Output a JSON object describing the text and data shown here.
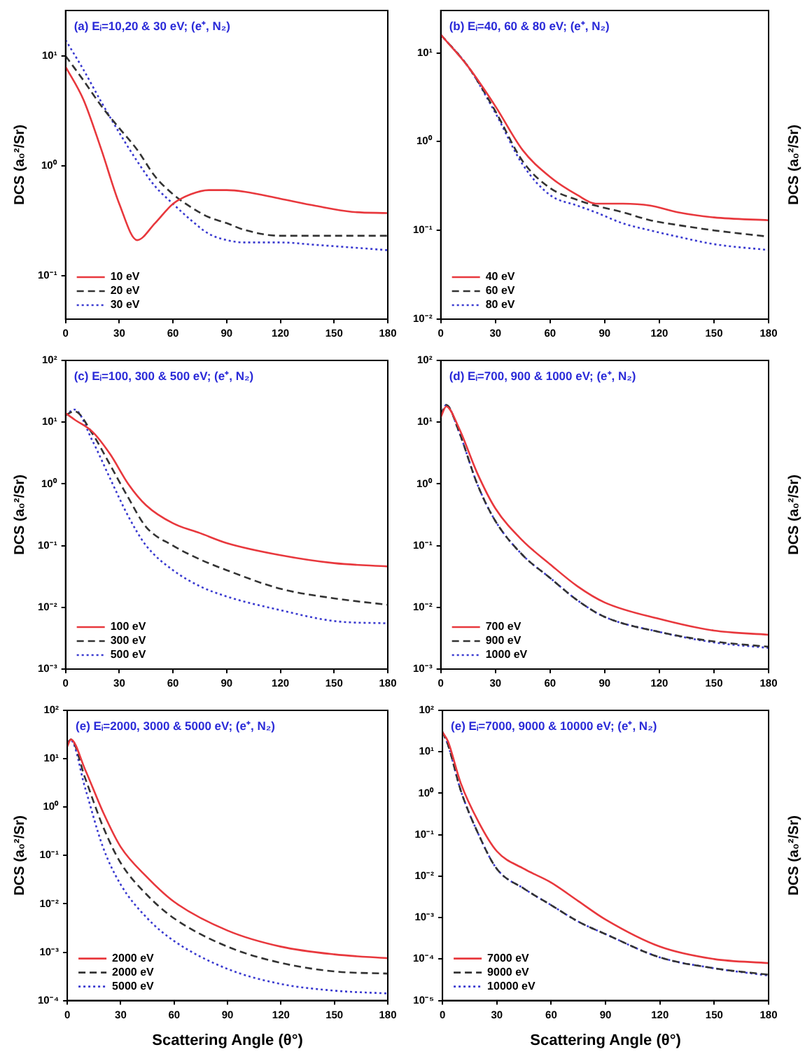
{
  "chart_data": [
    {
      "type": "line",
      "title": "(a) Eᵢ=10,20 & 30 eV; (e⁺, N₂)",
      "ylabel": "DCS (a₀²/Sr)",
      "log": "y",
      "grid": false,
      "legend": "bottom left",
      "marker": "none",
      "xlim": [
        0,
        180
      ],
      "xticks": [
        0,
        30,
        60,
        90,
        120,
        150,
        180
      ],
      "ylim": [
        0.04,
        26
      ],
      "yticks": [
        {
          "value": 0.1,
          "label": "10⁻¹"
        },
        {
          "value": 1,
          "label": "10⁰"
        },
        {
          "value": 10,
          "label": "10¹"
        }
      ],
      "x": [
        0,
        10,
        20,
        30,
        40,
        50,
        60,
        70,
        80,
        90,
        100,
        120,
        140,
        160,
        180
      ],
      "series": [
        {
          "name": "10 eV",
          "color": "#e8383d",
          "line_style": "solid",
          "values": [
            8,
            4,
            1.4,
            0.45,
            0.21,
            0.3,
            0.45,
            0.55,
            0.6,
            0.6,
            0.58,
            0.5,
            0.43,
            0.38,
            0.37
          ]
        },
        {
          "name": "20 eV",
          "color": "#333333",
          "line_style": "dashed",
          "values": [
            10,
            6,
            3.5,
            2.2,
            1.4,
            0.8,
            0.55,
            0.42,
            0.34,
            0.3,
            0.26,
            0.23,
            0.23,
            0.23,
            0.23
          ]
        },
        {
          "name": "30 eV",
          "color": "#3a3ad0",
          "line_style": "dotted",
          "values": [
            14,
            7.5,
            3.8,
            2,
            1.1,
            0.65,
            0.45,
            0.32,
            0.24,
            0.21,
            0.2,
            0.2,
            0.19,
            0.18,
            0.17
          ]
        }
      ]
    },
    {
      "type": "line",
      "title": "(b) Eᵢ=40, 60 & 80 eV; (e⁺, N₂)",
      "ylabel": "DCS (a₀²/Sr)",
      "log": "y",
      "grid": false,
      "legend": "bottom left",
      "marker": "none",
      "xlim": [
        0,
        180
      ],
      "xticks": [
        0,
        30,
        60,
        90,
        120,
        150,
        180
      ],
      "ylim": [
        0.01,
        30
      ],
      "yticks": [
        {
          "value": 0.01,
          "label": "10⁻²"
        },
        {
          "value": 0.1,
          "label": "10⁻¹"
        },
        {
          "value": 1,
          "label": "10⁰"
        },
        {
          "value": 10,
          "label": "10¹"
        }
      ],
      "x": [
        0,
        15,
        30,
        45,
        60,
        75,
        85,
        100,
        115,
        130,
        150,
        180
      ],
      "series": [
        {
          "name": "40 eV",
          "color": "#e8383d",
          "line_style": "solid",
          "values": [
            16,
            7,
            2.5,
            0.8,
            0.4,
            0.25,
            0.2,
            0.2,
            0.19,
            0.16,
            0.14,
            0.13
          ]
        },
        {
          "name": "60 eV",
          "color": "#333333",
          "line_style": "dashed",
          "values": [
            16,
            7,
            2.2,
            0.6,
            0.3,
            0.22,
            0.19,
            0.16,
            0.13,
            0.115,
            0.1,
            0.085
          ]
        },
        {
          "name": "80 eV",
          "color": "#3a3ad0",
          "line_style": "dotted",
          "values": [
            16,
            7,
            2.1,
            0.55,
            0.25,
            0.19,
            0.16,
            0.12,
            0.1,
            0.085,
            0.07,
            0.06
          ]
        }
      ]
    },
    {
      "type": "line",
      "title": "(c) Eᵢ=100, 300 & 500 eV; (e⁺, N₂)",
      "ylabel": "DCS (a₀²/Sr)",
      "log": "y",
      "grid": false,
      "legend": "bottom left",
      "marker": "none",
      "xlim": [
        0,
        180
      ],
      "xticks": [
        0,
        30,
        60,
        90,
        120,
        150,
        180
      ],
      "ylim": [
        0.001,
        100
      ],
      "yticks": [
        {
          "value": 0.001,
          "label": "10⁻³"
        },
        {
          "value": 0.01,
          "label": "10⁻²"
        },
        {
          "value": 0.1,
          "label": "10⁻¹"
        },
        {
          "value": 1,
          "label": "10⁰"
        },
        {
          "value": 10,
          "label": "10¹"
        },
        {
          "value": 100,
          "label": "10²"
        }
      ],
      "x": [
        0,
        5,
        15,
        25,
        35,
        45,
        60,
        75,
        90,
        120,
        150,
        180
      ],
      "series": [
        {
          "name": "100 eV",
          "color": "#e8383d",
          "line_style": "solid",
          "values": [
            14,
            11,
            7,
            3,
            1,
            0.45,
            0.23,
            0.16,
            0.11,
            0.07,
            0.052,
            0.046
          ]
        },
        {
          "name": "300 eV",
          "color": "#333333",
          "line_style": "dashed",
          "values": [
            13,
            15,
            6.5,
            2,
            0.6,
            0.2,
            0.1,
            0.06,
            0.04,
            0.02,
            0.014,
            0.011
          ]
        },
        {
          "name": "500 eV",
          "color": "#3a3ad0",
          "line_style": "dotted",
          "values": [
            13,
            16,
            5,
            1.2,
            0.3,
            0.1,
            0.04,
            0.022,
            0.015,
            0.009,
            0.006,
            0.0055
          ]
        }
      ]
    },
    {
      "type": "line",
      "title": "(d) Eᵢ=700, 900 & 1000 eV; (e⁺, N₂)",
      "ylabel": "DCS (a₀²/Sr)",
      "log": "y",
      "grid": false,
      "legend": "bottom left",
      "marker": "none",
      "xlim": [
        0,
        180
      ],
      "xticks": [
        0,
        30,
        60,
        90,
        120,
        150,
        180
      ],
      "ylim": [
        0.001,
        100
      ],
      "yticks": [
        {
          "value": 0.001,
          "label": "10⁻³"
        },
        {
          "value": 0.01,
          "label": "10⁻²"
        },
        {
          "value": 0.1,
          "label": "10⁻¹"
        },
        {
          "value": 1,
          "label": "10⁰"
        },
        {
          "value": 10,
          "label": "10¹"
        },
        {
          "value": 100,
          "label": "10²"
        }
      ],
      "x": [
        0,
        3,
        10,
        20,
        30,
        45,
        60,
        75,
        90,
        120,
        150,
        180
      ],
      "series": [
        {
          "name": "700 eV",
          "color": "#e8383d",
          "line_style": "solid",
          "values": [
            12,
            18,
            8,
            1.5,
            0.4,
            0.12,
            0.05,
            0.022,
            0.012,
            0.0065,
            0.0042,
            0.0036
          ]
        },
        {
          "name": "900 eV",
          "color": "#333333",
          "line_style": "dashed",
          "values": [
            13,
            19,
            7,
            1,
            0.25,
            0.07,
            0.03,
            0.013,
            0.007,
            0.004,
            0.0028,
            0.0023
          ]
        },
        {
          "name": "1000 eV",
          "color": "#3a3ad0",
          "line_style": "dotted",
          "values": [
            13,
            19,
            7,
            1,
            0.25,
            0.07,
            0.03,
            0.013,
            0.007,
            0.004,
            0.0027,
            0.0022
          ]
        }
      ]
    },
    {
      "type": "line",
      "title": "(e) Eᵢ=2000, 3000 & 5000 eV; (e⁺, N₂)",
      "xlabel": "Scattering Angle (θ°)",
      "ylabel": "DCS (a₀²/Sr)",
      "log": "y",
      "grid": false,
      "legend": "bottom left",
      "marker": "none",
      "xlim": [
        0,
        180
      ],
      "xticks": [
        0,
        30,
        60,
        90,
        120,
        150,
        180
      ],
      "ylim": [
        0.0001,
        100
      ],
      "yticks": [
        {
          "value": 0.0001,
          "label": "10⁻⁴"
        },
        {
          "value": 0.001,
          "label": "10⁻³"
        },
        {
          "value": 0.01,
          "label": "10⁻²"
        },
        {
          "value": 0.1,
          "label": "10⁻¹"
        },
        {
          "value": 1,
          "label": "10⁰"
        },
        {
          "value": 10,
          "label": "10¹"
        },
        {
          "value": 100,
          "label": "10²"
        }
      ],
      "x": [
        0,
        2,
        10,
        20,
        30,
        45,
        60,
        90,
        120,
        150,
        180
      ],
      "series": [
        {
          "name": "2000 eV",
          "color": "#e8383d",
          "line_style": "solid",
          "values": [
            18,
            25,
            6,
            0.8,
            0.15,
            0.035,
            0.011,
            0.0028,
            0.0013,
            0.0009,
            0.00075
          ]
        },
        {
          "name": "2000 eV",
          "color": "#333333",
          "line_style": "dashed",
          "values": [
            20,
            25,
            4,
            0.4,
            0.07,
            0.015,
            0.005,
            0.0013,
            0.0006,
            0.0004,
            0.00036
          ]
        },
        {
          "name": "5000 eV",
          "color": "#3a3ad0",
          "line_style": "dotted",
          "values": [
            22,
            24,
            2.5,
            0.15,
            0.025,
            0.005,
            0.0017,
            0.00045,
            0.00022,
            0.00016,
            0.00014
          ]
        }
      ]
    },
    {
      "type": "line",
      "title": "(e) Eᵢ=7000, 9000 & 10000 eV; (e⁺, N₂)",
      "xlabel": "Scattering Angle (θ°)",
      "ylabel": "DCS (a₀²/Sr)",
      "log": "y",
      "grid": false,
      "legend": "bottom left",
      "marker": "none",
      "xlim": [
        0,
        180
      ],
      "xticks": [
        0,
        30,
        60,
        90,
        120,
        150,
        180
      ],
      "ylim": [
        1e-05,
        100
      ],
      "yticks": [
        {
          "value": 1e-05,
          "label": "10⁻⁵"
        },
        {
          "value": 0.0001,
          "label": "10⁻⁴"
        },
        {
          "value": 0.001,
          "label": "10⁻³"
        },
        {
          "value": 0.01,
          "label": "10⁻²"
        },
        {
          "value": 0.1,
          "label": "10⁻¹"
        },
        {
          "value": 1,
          "label": "10⁰"
        },
        {
          "value": 10,
          "label": "10¹"
        },
        {
          "value": 100,
          "label": "10²"
        }
      ],
      "x": [
        0,
        3,
        10,
        20,
        30,
        45,
        60,
        75,
        90,
        120,
        150,
        180
      ],
      "series": [
        {
          "name": "7000 eV",
          "color": "#e8383d",
          "line_style": "solid",
          "values": [
            30,
            18,
            1.8,
            0.2,
            0.04,
            0.015,
            0.007,
            0.0025,
            0.0009,
            0.0002,
            0.0001,
            8e-05
          ]
        },
        {
          "name": "9000 eV",
          "color": "#333333",
          "line_style": "dashed",
          "values": [
            30,
            15,
            1.2,
            0.1,
            0.015,
            0.005,
            0.002,
            0.0008,
            0.0004,
            0.00011,
            6e-05,
            4.2e-05
          ]
        },
        {
          "name": "10000 eV",
          "color": "#3a3ad0",
          "line_style": "dotted",
          "values": [
            30,
            15,
            1.2,
            0.1,
            0.015,
            0.005,
            0.002,
            0.0008,
            0.0004,
            0.00011,
            6e-05,
            4e-05
          ]
        }
      ]
    }
  ]
}
